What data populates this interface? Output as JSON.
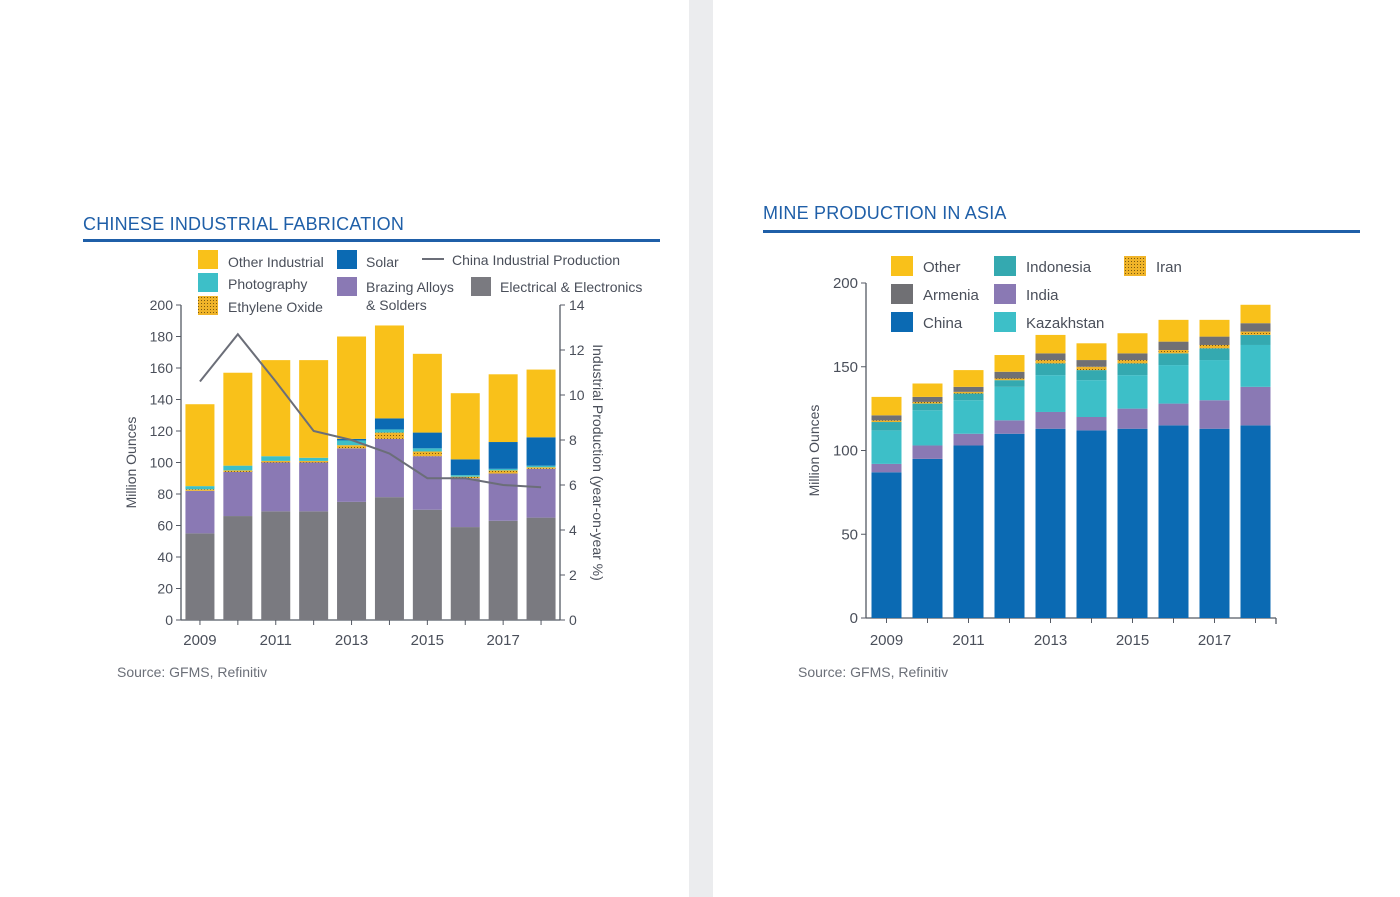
{
  "colors": {
    "title": "#1f5fa8",
    "other_industrial": "#f9c11a",
    "photography": "#3dbfc8",
    "ethylene_oxide": "#f0b429",
    "solar": "#0b6ab3",
    "brazing": "#8a79b4",
    "electrical": "#7a7a80",
    "line": "#6b6e78",
    "other": "#f9c11a",
    "armenia": "#707074",
    "china": "#0b6ab3",
    "indonesia": "#34a9b0",
    "india": "#8a79b4",
    "kazakhstan": "#3dbfc8",
    "iran": "#f0b429"
  },
  "left": {
    "title": "CHINESE INDUSTRIAL FABRICATION",
    "source": "Source: GFMS, Refinitiv"
  },
  "right": {
    "title": "MINE PRODUCTION IN ASIA",
    "source": "Source: GFMS, Refinitiv"
  },
  "chart_data": [
    {
      "type": "bar",
      "stacked": true,
      "title": "CHINESE INDUSTRIAL FABRICATION",
      "ylabel": "Million Ounces",
      "y2label": "Industrial Production (year-on-year %)",
      "ylim": [
        0,
        200
      ],
      "y2lim": [
        0,
        14
      ],
      "yticks": [
        "0",
        "20",
        "40",
        "60",
        "80",
        "100",
        "120",
        "140",
        "160",
        "180",
        "200"
      ],
      "y2ticks": [
        "0",
        "2",
        "4",
        "6",
        "8",
        "10",
        "12",
        "14"
      ],
      "categories": [
        "2009",
        "2010",
        "2011",
        "2012",
        "2013",
        "2014",
        "2015",
        "2016",
        "2017",
        "2018"
      ],
      "xticks": [
        "2009",
        "2011",
        "2013",
        "2015",
        "2017"
      ],
      "legend_placement": "top",
      "series": [
        {
          "name": "Electrical & Electronics",
          "color_key": "electrical",
          "values": [
            55,
            66,
            69,
            69,
            75,
            78,
            70,
            59,
            63,
            65
          ]
        },
        {
          "name": "Brazing Alloys & Solders",
          "color_key": "brazing",
          "values": [
            27,
            28,
            31,
            31,
            34,
            37,
            34,
            31,
            30,
            31
          ]
        },
        {
          "name": "Ethylene Oxide",
          "color_key": "ethylene_oxide",
          "values": [
            1,
            1,
            1,
            1,
            2,
            4,
            3,
            1,
            2,
            1
          ]
        },
        {
          "name": "Photography",
          "color_key": "photography",
          "values": [
            2,
            3,
            3,
            2,
            3,
            2,
            2,
            1,
            1,
            1
          ]
        },
        {
          "name": "Solar",
          "color_key": "solar",
          "values": [
            0,
            0,
            0,
            0,
            1,
            7,
            10,
            10,
            17,
            18
          ]
        },
        {
          "name": "Other Industrial",
          "color_key": "other_industrial",
          "values": [
            52,
            59,
            61,
            62,
            65,
            59,
            50,
            42,
            43,
            43
          ]
        }
      ],
      "line": {
        "name": "China Industrial Production",
        "axis": "right",
        "values": [
          10.6,
          12.7,
          10.6,
          8.4,
          8.0,
          7.4,
          6.3,
          6.3,
          6.0,
          5.9
        ]
      }
    },
    {
      "type": "bar",
      "stacked": true,
      "title": "MINE PRODUCTION IN ASIA",
      "ylabel": "Million Ounces",
      "ylim": [
        0,
        200
      ],
      "yticks": [
        "0",
        "50",
        "100",
        "150",
        "200"
      ],
      "categories": [
        "2009",
        "2010",
        "2011",
        "2012",
        "2013",
        "2014",
        "2015",
        "2016",
        "2017",
        "2018"
      ],
      "xticks": [
        "2009",
        "2011",
        "2013",
        "2015",
        "2017"
      ],
      "legend_placement": "top",
      "series": [
        {
          "name": "China",
          "color_key": "china",
          "values": [
            87,
            95,
            103,
            110,
            113,
            112,
            113,
            115,
            113,
            115
          ]
        },
        {
          "name": "India",
          "color_key": "india",
          "values": [
            5,
            8,
            7,
            8,
            10,
            8,
            12,
            13,
            17,
            23
          ]
        },
        {
          "name": "Kazakhstan",
          "color_key": "kazakhstan",
          "values": [
            20,
            21,
            20,
            20,
            22,
            22,
            20,
            23,
            24,
            25
          ]
        },
        {
          "name": "Indonesia",
          "color_key": "indonesia",
          "values": [
            5,
            4,
            4,
            4,
            7,
            6,
            7,
            7,
            7,
            6
          ]
        },
        {
          "name": "Iran",
          "color_key": "iran",
          "values": [
            1,
            1,
            1,
            1,
            2,
            2,
            2,
            2,
            2,
            2
          ]
        },
        {
          "name": "Armenia",
          "color_key": "armenia",
          "values": [
            3,
            3,
            3,
            4,
            4,
            4,
            4,
            5,
            5,
            5
          ]
        },
        {
          "name": "Other",
          "color_key": "other",
          "values": [
            11,
            8,
            10,
            10,
            11,
            10,
            12,
            13,
            10,
            11
          ]
        }
      ]
    }
  ]
}
